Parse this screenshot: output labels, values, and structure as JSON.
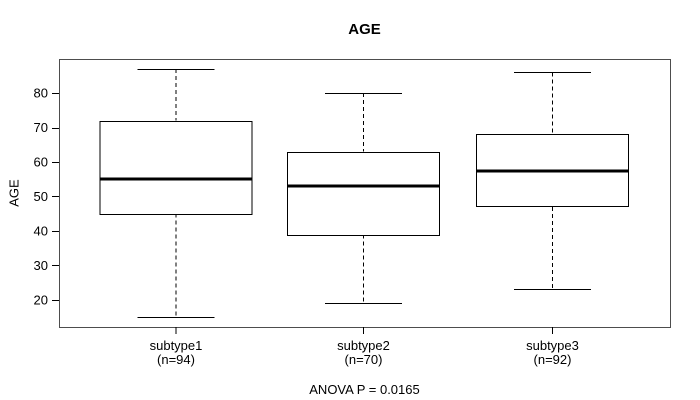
{
  "figure": {
    "title": "AGE",
    "annotation": "ANOVA P = 0.0165"
  },
  "chart_data": {
    "type": "boxplot",
    "title": "AGE",
    "ylabel": "AGE",
    "ylim": [
      12.1,
      89.9
    ],
    "yticks": [
      20,
      30,
      40,
      50,
      60,
      70,
      80
    ],
    "grid": false,
    "annotation": "ANOVA P = 0.0165",
    "groups": [
      {
        "label": "subtype1",
        "sublabel": "(n=94)",
        "n": 94,
        "whisker_low": 15,
        "q1": 45,
        "median": 55,
        "q3": 72,
        "whisker_high": 87
      },
      {
        "label": "subtype2",
        "sublabel": "(n=70)",
        "n": 70,
        "whisker_low": 19,
        "q1": 39,
        "median": 53,
        "q3": 63,
        "whisker_high": 80
      },
      {
        "label": "subtype3",
        "sublabel": "(n=92)",
        "n": 92,
        "whisker_low": 23,
        "q1": 47,
        "median": 57.5,
        "q3": 68,
        "whisker_high": 86
      }
    ],
    "colors": {
      "line": "#000000",
      "plot_border": "#4d4d4d",
      "box_fill": "#ffffff",
      "background": "#ffffff"
    }
  }
}
